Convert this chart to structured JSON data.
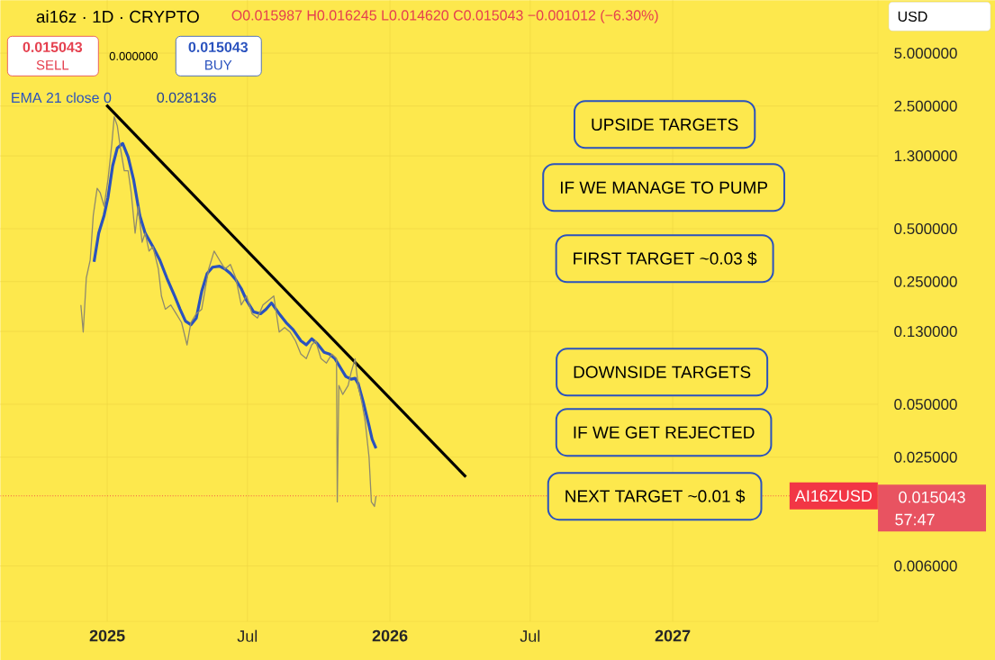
{
  "chart_data": {
    "type": "line",
    "title": "ai16z · 1D · CRYPTO",
    "x": [
      "2024-11-28",
      "2024-12-01",
      "2024-12-05",
      "2024-12-10",
      "2024-12-14",
      "2024-12-19",
      "2024-12-23",
      "2024-12-28",
      "2025-01-02",
      "2025-01-07",
      "2025-01-10",
      "2025-01-14",
      "2025-01-18",
      "2025-01-23",
      "2025-01-28",
      "2025-02-01",
      "2025-02-06",
      "2025-02-10",
      "2025-02-15",
      "2025-02-19",
      "2025-02-24",
      "2025-03-01",
      "2025-03-08",
      "2025-03-12",
      "2025-03-17",
      "2025-03-24",
      "2025-03-31",
      "2025-04-07",
      "2025-04-14",
      "2025-04-19",
      "2025-04-26",
      "2025-05-03",
      "2025-05-12",
      "2025-05-19",
      "2025-05-26",
      "2025-06-02",
      "2025-06-09",
      "2025-06-16",
      "2025-06-23",
      "2025-06-30",
      "2025-07-07",
      "2025-07-14",
      "2025-07-21",
      "2025-07-28",
      "2025-08-04",
      "2025-08-11",
      "2025-08-18",
      "2025-08-25",
      "2025-09-01",
      "2025-09-08",
      "2025-09-15",
      "2025-09-22",
      "2025-09-27",
      "2025-10-04",
      "2025-10-11",
      "2025-10-18",
      "2025-10-24",
      "2025-10-25",
      "2025-10-27",
      "2025-11-01",
      "2025-11-08",
      "2025-11-12",
      "2025-11-17",
      "2025-11-21",
      "2025-11-26",
      "2025-11-30",
      "2025-12-05",
      "2025-12-08",
      "2025-12-12",
      "2025-12-14"
    ],
    "series": [
      {
        "color": "#8f8a6d",
        "values": [
          0.184,
          0.129,
          0.262,
          0.331,
          0.596,
          0.849,
          0.8,
          0.671,
          0.954,
          1.53,
          2.17,
          1.93,
          1.44,
          1.07,
          1.07,
          0.8,
          0.472,
          0.671,
          0.419,
          0.472,
          0.373,
          0.395,
          0.295,
          0.207,
          0.174,
          0.184,
          0.164,
          0.146,
          0.109,
          0.146,
          0.164,
          0.174,
          0.295,
          0.373,
          0.331,
          0.295,
          0.313,
          0.262,
          0.184,
          0.207,
          0.164,
          0.155,
          0.184,
          0.195,
          0.207,
          0.129,
          0.137,
          0.129,
          0.115,
          0.0966,
          0.091,
          0.109,
          0.115,
          0.091,
          0.0859,
          0.0966,
          0.091,
          0.0139,
          0.064,
          0.0569,
          0.064,
          0.0764,
          0.091,
          0.064,
          0.0506,
          0.04,
          0.025,
          0.0139,
          0.0131,
          0.015
        ]
      },
      {
        "name": "EMA 21 close 0",
        "color": "#2a52be",
        "x": [
          "2024-12-15",
          "2024-12-21",
          "2024-12-28",
          "2025-01-02",
          "2025-01-08",
          "2025-01-14",
          "2025-01-21",
          "2025-01-28",
          "2025-02-04",
          "2025-02-12",
          "2025-02-19",
          "2025-03-01",
          "2025-03-10",
          "2025-03-19",
          "2025-03-29",
          "2025-04-05",
          "2025-04-12",
          "2025-04-19",
          "2025-04-26",
          "2025-05-03",
          "2025-05-10",
          "2025-05-17",
          "2025-05-26",
          "2025-06-02",
          "2025-06-09",
          "2025-06-16",
          "2025-06-23",
          "2025-06-30",
          "2025-07-09",
          "2025-07-18",
          "2025-07-25",
          "2025-08-01",
          "2025-08-11",
          "2025-08-20",
          "2025-08-29",
          "2025-09-08",
          "2025-09-15",
          "2025-09-22",
          "2025-09-29",
          "2025-10-08",
          "2025-10-15",
          "2025-10-22",
          "2025-10-29",
          "2025-11-05",
          "2025-11-12",
          "2025-11-17",
          "2025-11-21",
          "2025-11-28",
          "2025-12-05",
          "2025-12-09",
          "2025-12-14"
        ],
        "values": [
          0.324,
          0.472,
          0.596,
          0.754,
          1.14,
          1.44,
          1.53,
          1.28,
          0.954,
          0.596,
          0.472,
          0.395,
          0.331,
          0.262,
          0.207,
          0.174,
          0.149,
          0.142,
          0.155,
          0.22,
          0.278,
          0.302,
          0.306,
          0.295,
          0.278,
          0.256,
          0.228,
          0.195,
          0.168,
          0.164,
          0.174,
          0.189,
          0.164,
          0.146,
          0.133,
          0.115,
          0.109,
          0.118,
          0.111,
          0.0989,
          0.0966,
          0.091,
          0.0809,
          0.072,
          0.0695,
          0.0703,
          0.0655,
          0.0506,
          0.0377,
          0.0316,
          0.0281
        ]
      },
      {
        "color": "#000000",
        "x": [
          "2024-12-31",
          "2026-04-09"
        ],
        "values": [
          2.53,
          0.0193
        ]
      }
    ],
    "xlim": [
      "2024-08-16",
      "2027-09-23"
    ],
    "xticks": [
      {
        "value": "2025",
        "label": "2025"
      },
      {
        "value": "2025-07",
        "label": "Jul"
      },
      {
        "value": "2026",
        "label": "2026"
      },
      {
        "value": "2026-07",
        "label": "Jul"
      },
      {
        "value": "2027",
        "label": "2027"
      }
    ],
    "ylim": [
      0.0029,
      10
    ],
    "yticks": [
      {
        "value": 5,
        "label": "5.000000"
      },
      {
        "value": 2.5,
        "label": "2.500000"
      },
      {
        "value": 1.3,
        "label": "1.300000"
      },
      {
        "value": 0.5,
        "label": "0.500000"
      },
      {
        "value": 0.25,
        "label": "0.250000"
      },
      {
        "value": 0.13,
        "label": "0.130000"
      },
      {
        "value": 0.05,
        "label": "0.050000"
      },
      {
        "value": 0.025,
        "label": "0.025000"
      },
      {
        "value": 0.006,
        "label": "0.006000"
      }
    ],
    "log": true,
    "grid": true,
    "ref_lines": [
      {
        "axis": "y",
        "value": 0.015043,
        "label": "AI16ZUSD",
        "color": "#f23645",
        "line_style": "dotted"
      }
    ],
    "annotations": [
      "O0.015987 H0.016245 L0.014620 C0.015043 −0.001012 (−6.30%)",
      "0.015043",
      "SELL",
      "0.000000",
      "0.015043",
      "BUY",
      "0.028136",
      "USD",
      "UPSIDE TARGETS",
      "IF WE MANAGE TO PUMP",
      "FIRST TARGET ~0.03 $",
      "DOWNSIDE TARGETS",
      "IF WE GET REJECTED",
      "NEXT TARGET ~0.01 $",
      "0.015043",
      "57:47"
    ]
  }
}
